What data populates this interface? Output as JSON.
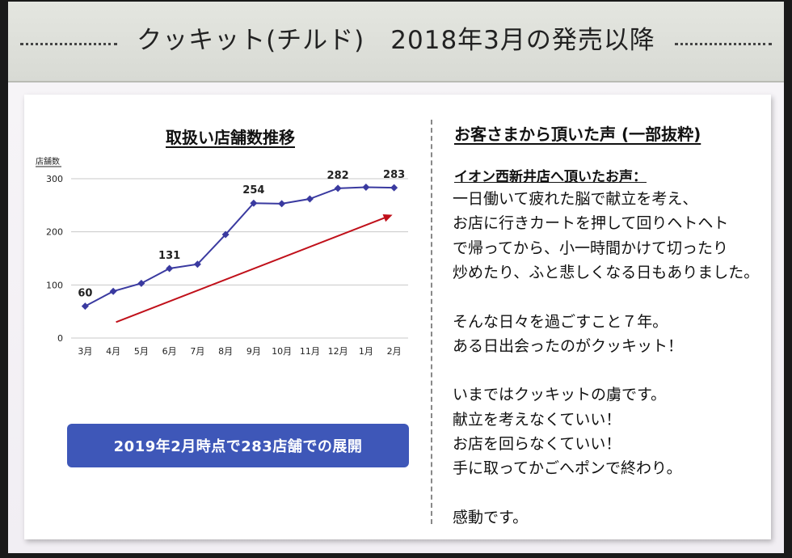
{
  "header": {
    "title": "クッキット(チルド)　2018年3月の発売以降"
  },
  "left": {
    "section_title": "取扱い店舗数推移",
    "summary_button": "2019年2月時点で283店舗での展開"
  },
  "chart_data": {
    "type": "line",
    "ylabel": "店舗数",
    "xlabel": "",
    "categories": [
      "3月",
      "4月",
      "5月",
      "6月",
      "7月",
      "8月",
      "9月",
      "10月",
      "11月",
      "12月",
      "1月",
      "2月"
    ],
    "values": [
      60,
      88,
      103,
      131,
      139,
      195,
      254,
      253,
      262,
      282,
      284,
      283
    ],
    "labeled_points": {
      "0": "60",
      "3": "131",
      "6": "254",
      "9": "282",
      "11": "283"
    },
    "yticks": [
      "0",
      "100",
      "200",
      "300"
    ],
    "ylim": [
      0,
      300
    ],
    "grid": true,
    "trend_arrow": true,
    "colors": {
      "line": "#3a3aa0",
      "marker": "#3a3aa0",
      "arrow": "#c0101a",
      "grid": "#c8c8c8"
    }
  },
  "right": {
    "section_title": "お客さまから頂いた声 (一部抜粋)",
    "quote_heading": "イオン西新井店へ頂いたお声：",
    "lines": [
      "一日働いて疲れた脳で献立を考え、",
      "お店に行きカートを押して回りヘトヘト",
      "で帰ってから、小一時間かけて切ったり",
      "炒めたり、ふと悲しくなる日もありました。",
      "",
      "そんな日々を過ごすこと７年。",
      "ある日出会ったのがクッキット！",
      "",
      "いまではクッキットの虜です。",
      "献立を考えなくていい！",
      "お店を回らなくていい！",
      "手に取ってかごへポンで終わり。",
      "",
      "感動です。"
    ]
  }
}
